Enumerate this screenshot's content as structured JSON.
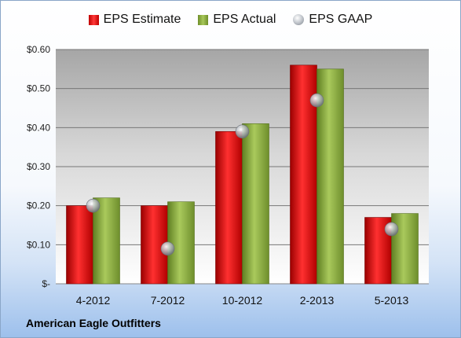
{
  "chart_data": {
    "type": "bar",
    "categories": [
      "4-2012",
      "7-2012",
      "10-2012",
      "2-2013",
      "5-2013"
    ],
    "series": [
      {
        "name": "EPS Estimate",
        "values": [
          0.2,
          0.2,
          0.39,
          0.56,
          0.17
        ],
        "color": "#d01818"
      },
      {
        "name": "EPS Actual",
        "values": [
          0.22,
          0.21,
          0.41,
          0.55,
          0.18
        ],
        "color": "#8fb045"
      },
      {
        "name": "EPS GAAP",
        "values": [
          0.2,
          0.09,
          0.39,
          0.47,
          0.14
        ],
        "color": "#a8adb4",
        "marker": "circle"
      }
    ],
    "yticks": [
      "$-",
      "$0.10",
      "$0.20",
      "$0.30",
      "$0.40",
      "$0.50",
      "$0.60"
    ],
    "ylim": [
      0,
      0.6
    ],
    "grid": true,
    "legend": "top-center"
  },
  "company_label": "American Eagle Outfitters"
}
